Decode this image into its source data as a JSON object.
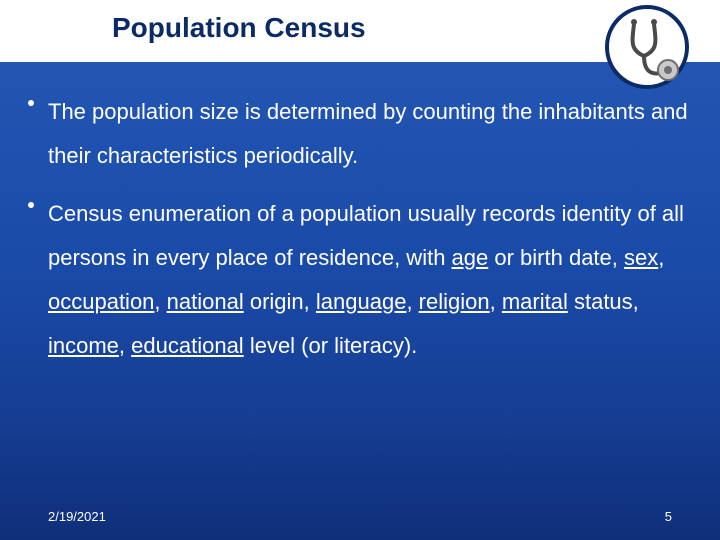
{
  "slide": {
    "title": "Population Census",
    "title_color": "#0b2b66",
    "title_fontsize": 28,
    "body_fontsize": 22,
    "body_color": "#ffffff",
    "background_gradient": [
      "#2759b3",
      "#1f52b0",
      "#1a4aa8",
      "#163f95",
      "#0f2f7a"
    ],
    "title_band_color": "#ffffff",
    "bullets": [
      {
        "runs": [
          {
            "t": "The population size is determined by counting the inhabitants and their characteristics periodically.",
            "u": false
          }
        ]
      },
      {
        "runs": [
          {
            "t": "Census enumeration of a population usually records identity of all persons in every place of residence, with ",
            "u": false
          },
          {
            "t": "age",
            "u": true
          },
          {
            "t": " or birth date, ",
            "u": false
          },
          {
            "t": "sex",
            "u": true
          },
          {
            "t": ", ",
            "u": false
          },
          {
            "t": "occupation",
            "u": true
          },
          {
            "t": ", ",
            "u": false
          },
          {
            "t": "national",
            "u": true
          },
          {
            "t": " origin, ",
            "u": false
          },
          {
            "t": "language",
            "u": true
          },
          {
            "t": ", ",
            "u": false
          },
          {
            "t": "religion",
            "u": true
          },
          {
            "t": ", ",
            "u": false
          },
          {
            "t": "marital",
            "u": true
          },
          {
            "t": " status, ",
            "u": false
          },
          {
            "t": "income",
            "u": true
          },
          {
            "t": ", ",
            "u": false
          },
          {
            "t": "educational",
            "u": true
          },
          {
            "t": " level (or literacy).",
            "u": false
          }
        ]
      }
    ],
    "footer": {
      "date": "2/19/2021",
      "page": "5",
      "fontsize": 13,
      "color": "#ffffff"
    },
    "icon": {
      "name": "stethoscope-icon",
      "colors": {
        "frame": "#0b2b66",
        "tube": "#4a4a4a",
        "disc": "#c9c9c9",
        "disc_dark": "#6e6e6e"
      }
    }
  }
}
